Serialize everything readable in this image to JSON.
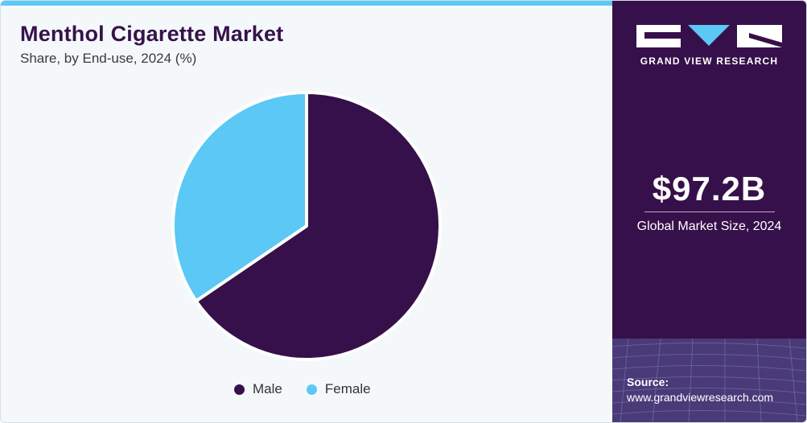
{
  "header": {
    "title": "Menthol Cigarette Market",
    "subtitle": "Share, by End-use, 2024 (%)"
  },
  "chart_data": {
    "type": "pie",
    "categories": [
      "Male",
      "Female"
    ],
    "values": [
      65.5,
      34.5
    ],
    "colors": [
      "#36104a",
      "#5bc8f5"
    ],
    "start_angle_deg": 0,
    "direction": "clockwise",
    "legend_position": "bottom"
  },
  "sidebar": {
    "brand": "GRAND VIEW RESEARCH",
    "market_value": "$97.2B",
    "market_caption": "Global Market Size, 2024",
    "source_label": "Source:",
    "source_url": "www.grandviewresearch.com"
  },
  "colors": {
    "accent": "#5bc8f5",
    "primary": "#36104a",
    "background": "#f4f8fb"
  }
}
